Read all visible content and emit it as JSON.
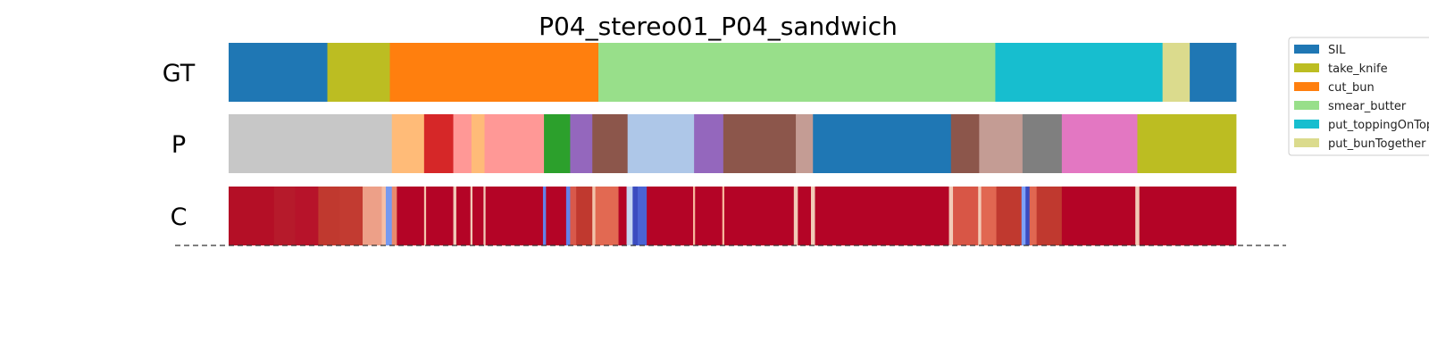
{
  "chart_data": {
    "type": "segmentation",
    "title": "P04_stereo01_P04_sandwich",
    "x_range": [
      0,
      1
    ],
    "rows": [
      {
        "label": "GT",
        "segments": [
          {
            "start": 0.0,
            "end": 0.098,
            "color": "#1f77b4"
          },
          {
            "start": 0.098,
            "end": 0.16,
            "color": "#bcbd22"
          },
          {
            "start": 0.16,
            "end": 0.367,
            "color": "#ff7f0e"
          },
          {
            "start": 0.367,
            "end": 0.761,
            "color": "#98df8a"
          },
          {
            "start": 0.761,
            "end": 0.927,
            "color": "#17becf"
          },
          {
            "start": 0.927,
            "end": 0.954,
            "color": "#dbdb8d"
          },
          {
            "start": 0.954,
            "end": 1.0,
            "color": "#1f77b4"
          }
        ]
      },
      {
        "label": "P",
        "segments": [
          {
            "start": 0.0,
            "end": 0.162,
            "color": "#c7c7c7"
          },
          {
            "start": 0.162,
            "end": 0.194,
            "color": "#ffbb78"
          },
          {
            "start": 0.194,
            "end": 0.223,
            "color": "#d62728"
          },
          {
            "start": 0.223,
            "end": 0.241,
            "color": "#ff9896"
          },
          {
            "start": 0.241,
            "end": 0.254,
            "color": "#ffbb78"
          },
          {
            "start": 0.254,
            "end": 0.313,
            "color": "#ff9896"
          },
          {
            "start": 0.313,
            "end": 0.339,
            "color": "#2ca02c"
          },
          {
            "start": 0.339,
            "end": 0.361,
            "color": "#9467bd"
          },
          {
            "start": 0.361,
            "end": 0.396,
            "color": "#8c564b"
          },
          {
            "start": 0.396,
            "end": 0.462,
            "color": "#aec7e8"
          },
          {
            "start": 0.462,
            "end": 0.491,
            "color": "#9467bd"
          },
          {
            "start": 0.491,
            "end": 0.563,
            "color": "#8c564b"
          },
          {
            "start": 0.563,
            "end": 0.58,
            "color": "#c49c94"
          },
          {
            "start": 0.58,
            "end": 0.717,
            "color": "#1f77b4"
          },
          {
            "start": 0.717,
            "end": 0.745,
            "color": "#8c564b"
          },
          {
            "start": 0.745,
            "end": 0.788,
            "color": "#c49c94"
          },
          {
            "start": 0.788,
            "end": 0.827,
            "color": "#7f7f7f"
          },
          {
            "start": 0.827,
            "end": 0.902,
            "color": "#e377c2"
          },
          {
            "start": 0.902,
            "end": 1.0,
            "color": "#bcbd22"
          }
        ]
      },
      {
        "label": "C",
        "segments": [
          {
            "start": 0.0,
            "end": 0.045,
            "color": "#b40f26"
          },
          {
            "start": 0.045,
            "end": 0.066,
            "color": "#b61a2b"
          },
          {
            "start": 0.066,
            "end": 0.089,
            "color": "#b7132a"
          },
          {
            "start": 0.089,
            "end": 0.11,
            "color": "#c0392f"
          },
          {
            "start": 0.11,
            "end": 0.133,
            "color": "#c23b31"
          },
          {
            "start": 0.133,
            "end": 0.152,
            "color": "#eda088"
          },
          {
            "start": 0.152,
            "end": 0.156,
            "color": "#f6bfa6"
          },
          {
            "start": 0.156,
            "end": 0.162,
            "color": "#7699f0"
          },
          {
            "start": 0.162,
            "end": 0.167,
            "color": "#e8896c"
          },
          {
            "start": 0.167,
            "end": 0.194,
            "color": "#b40426"
          },
          {
            "start": 0.194,
            "end": 0.196,
            "color": "#f4c5ad"
          },
          {
            "start": 0.196,
            "end": 0.223,
            "color": "#b40426"
          },
          {
            "start": 0.223,
            "end": 0.226,
            "color": "#f1cbb8"
          },
          {
            "start": 0.226,
            "end": 0.24,
            "color": "#b40426"
          },
          {
            "start": 0.24,
            "end": 0.242,
            "color": "#f1cbb8"
          },
          {
            "start": 0.242,
            "end": 0.253,
            "color": "#b40426"
          },
          {
            "start": 0.253,
            "end": 0.255,
            "color": "#f1cbb8"
          },
          {
            "start": 0.255,
            "end": 0.312,
            "color": "#b40426"
          },
          {
            "start": 0.312,
            "end": 0.315,
            "color": "#6282ea"
          },
          {
            "start": 0.315,
            "end": 0.335,
            "color": "#b40426"
          },
          {
            "start": 0.335,
            "end": 0.339,
            "color": "#6282ea"
          },
          {
            "start": 0.339,
            "end": 0.345,
            "color": "#d8594b"
          },
          {
            "start": 0.345,
            "end": 0.361,
            "color": "#c0392f"
          },
          {
            "start": 0.361,
            "end": 0.364,
            "color": "#f2c3ab"
          },
          {
            "start": 0.364,
            "end": 0.387,
            "color": "#e26952"
          },
          {
            "start": 0.387,
            "end": 0.395,
            "color": "#b40426"
          },
          {
            "start": 0.395,
            "end": 0.401,
            "color": "#c5d6f2"
          },
          {
            "start": 0.401,
            "end": 0.406,
            "color": "#3b4cc0"
          },
          {
            "start": 0.406,
            "end": 0.415,
            "color": "#4a63d3"
          },
          {
            "start": 0.415,
            "end": 0.461,
            "color": "#b40426"
          },
          {
            "start": 0.461,
            "end": 0.463,
            "color": "#f7b79b"
          },
          {
            "start": 0.463,
            "end": 0.49,
            "color": "#b40426"
          },
          {
            "start": 0.49,
            "end": 0.492,
            "color": "#f7b79b"
          },
          {
            "start": 0.492,
            "end": 0.561,
            "color": "#b40426"
          },
          {
            "start": 0.561,
            "end": 0.565,
            "color": "#f2cbb7"
          },
          {
            "start": 0.565,
            "end": 0.578,
            "color": "#b40426"
          },
          {
            "start": 0.578,
            "end": 0.582,
            "color": "#f2cbb7"
          },
          {
            "start": 0.582,
            "end": 0.715,
            "color": "#b40426"
          },
          {
            "start": 0.715,
            "end": 0.719,
            "color": "#f2cbb7"
          },
          {
            "start": 0.719,
            "end": 0.744,
            "color": "#d85646"
          },
          {
            "start": 0.744,
            "end": 0.747,
            "color": "#f2cbb7"
          },
          {
            "start": 0.747,
            "end": 0.762,
            "color": "#e16751"
          },
          {
            "start": 0.762,
            "end": 0.787,
            "color": "#c0392f"
          },
          {
            "start": 0.787,
            "end": 0.791,
            "color": "#7ea1f7"
          },
          {
            "start": 0.791,
            "end": 0.795,
            "color": "#3b4cc0"
          },
          {
            "start": 0.795,
            "end": 0.802,
            "color": "#e16751"
          },
          {
            "start": 0.802,
            "end": 0.827,
            "color": "#c0392f"
          },
          {
            "start": 0.827,
            "end": 0.9,
            "color": "#b40426"
          },
          {
            "start": 0.9,
            "end": 0.904,
            "color": "#f2cbb7"
          },
          {
            "start": 0.904,
            "end": 1.0,
            "color": "#b40426"
          }
        ]
      }
    ],
    "baseline": {
      "style": "dashed",
      "color": "#333333"
    },
    "legend": {
      "placement": "top-right",
      "entries": [
        {
          "label": "SIL",
          "color": "#1f77b4"
        },
        {
          "label": "take_knife",
          "color": "#bcbd22"
        },
        {
          "label": "cut_bun",
          "color": "#ff7f0e"
        },
        {
          "label": "smear_butter",
          "color": "#98df8a"
        },
        {
          "label": "put_toppingOnTop",
          "color": "#17becf"
        },
        {
          "label": "put_bunTogether",
          "color": "#dbdb8d"
        }
      ]
    }
  }
}
